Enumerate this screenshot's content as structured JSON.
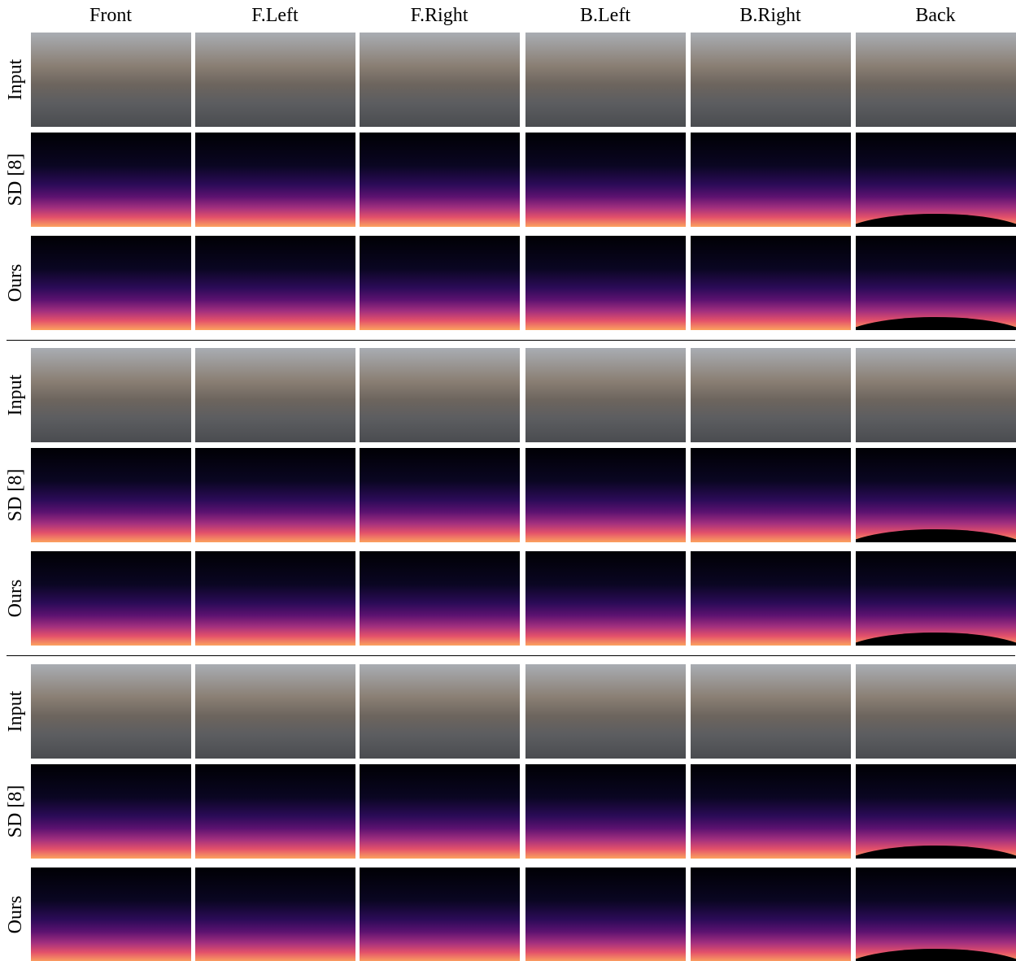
{
  "columns": [
    "Front",
    "F.Left",
    "F.Right",
    "B.Left",
    "B.Right",
    "Back"
  ],
  "groups": [
    {
      "rows": [
        "Input",
        "SD [8]",
        "Ours"
      ]
    },
    {
      "rows": [
        "Input",
        "SD [8]",
        "Ours"
      ]
    },
    {
      "rows": [
        "Input",
        "SD [8]",
        "Ours"
      ]
    }
  ]
}
